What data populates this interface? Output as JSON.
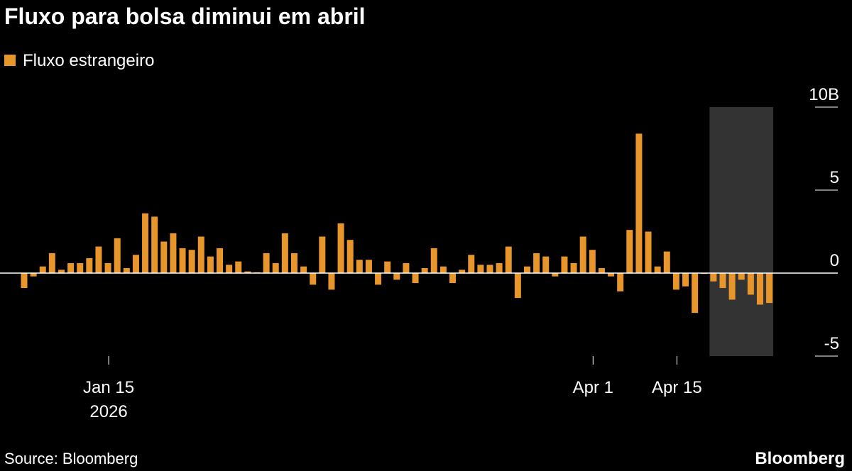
{
  "chart_data": {
    "type": "bar",
    "title": "Fluxo para bolsa diminui em abril",
    "series": [
      {
        "name": "Fluxo estrangeiro",
        "color": "#e8952c",
        "values": [
          -0.9,
          -0.2,
          0.4,
          1.2,
          0.2,
          0.6,
          0.6,
          0.9,
          1.6,
          0.6,
          2.1,
          0.3,
          1.1,
          3.6,
          3.4,
          1.9,
          2.4,
          1.5,
          1.4,
          2.2,
          1.0,
          1.5,
          0.5,
          0.7,
          0.1,
          0.05,
          1.2,
          0.6,
          2.4,
          1.2,
          0.4,
          -0.7,
          2.2,
          -1.0,
          3.0,
          2.0,
          0.8,
          0.8,
          -0.7,
          0.7,
          -0.4,
          0.6,
          -0.6,
          0.3,
          1.5,
          0.4,
          -0.6,
          0.2,
          1.1,
          0.5,
          0.5,
          0.6,
          1.6,
          -1.5,
          0.4,
          1.2,
          1.0,
          -0.2,
          1.0,
          0.6,
          2.2,
          1.4,
          0.3,
          -0.2,
          -1.1,
          2.6,
          8.4,
          2.5,
          0.4,
          1.3,
          -1.0,
          -0.8,
          -2.4,
          -0.05,
          -0.5,
          -0.9,
          -1.6,
          -0.4,
          -1.3,
          -1.9,
          -1.8
        ]
      }
    ],
    "categories": [
      null,
      null,
      null,
      null,
      null,
      null,
      null,
      null,
      null,
      "Jan 15",
      null,
      null,
      null,
      null,
      null,
      null,
      null,
      null,
      null,
      null,
      null,
      null,
      null,
      null,
      null,
      null,
      null,
      null,
      null,
      null,
      null,
      null,
      null,
      null,
      null,
      null,
      null,
      null,
      null,
      null,
      null,
      null,
      null,
      null,
      null,
      null,
      null,
      null,
      null,
      null,
      null,
      null,
      null,
      null,
      null,
      null,
      null,
      null,
      null,
      null,
      null,
      "Apr 1",
      null,
      null,
      null,
      null,
      null,
      null,
      null,
      null,
      "Apr 15",
      null,
      null,
      null,
      null,
      null,
      null,
      null,
      null,
      null,
      null
    ],
    "year_label": "2026",
    "ylim": [
      -5,
      10
    ],
    "yticks": [
      {
        "value": 10,
        "label": "10B"
      },
      5,
      0,
      -5
    ],
    "highlight": [
      74,
      80
    ],
    "source": "Source: Bloomberg",
    "brand": "Bloomberg"
  }
}
